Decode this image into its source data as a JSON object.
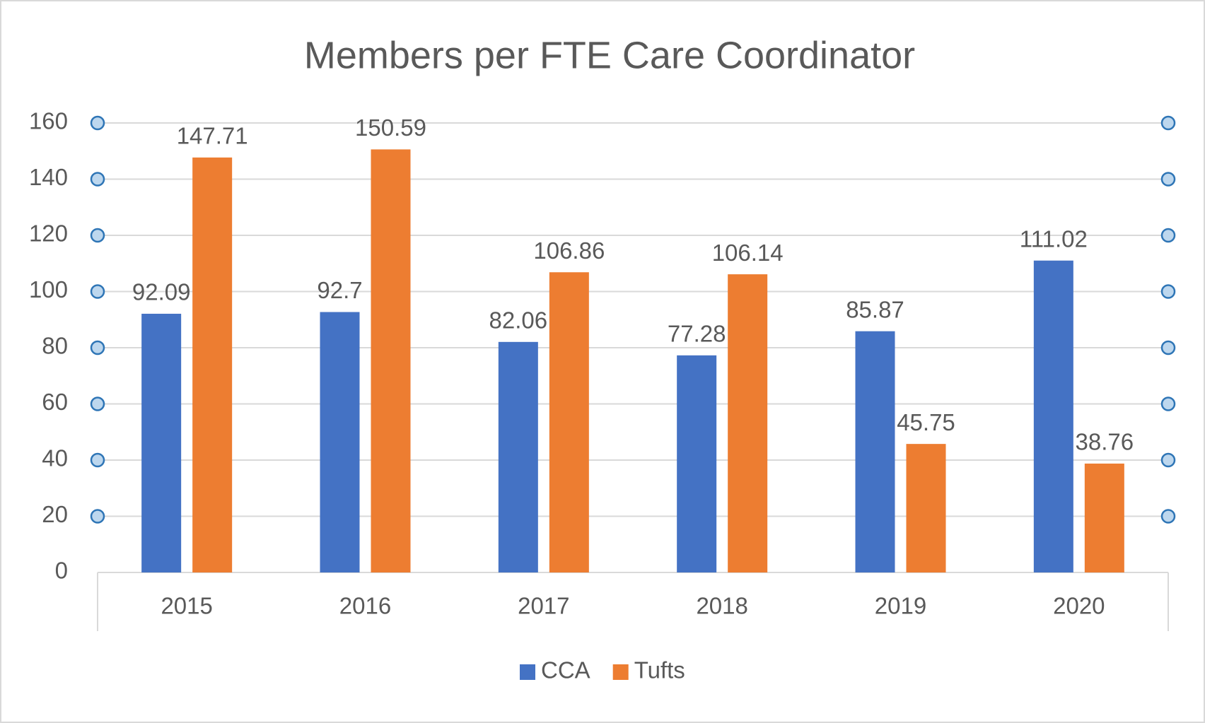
{
  "chart_data": {
    "type": "bar",
    "title": "Members per FTE Care Coordinator",
    "categories": [
      "2015",
      "2016",
      "2017",
      "2018",
      "2019",
      "2020"
    ],
    "series": [
      {
        "name": "CCA",
        "color": "#4472c4",
        "values": [
          92.09,
          92.7,
          82.06,
          77.28,
          85.87,
          111.02
        ]
      },
      {
        "name": "Tufts",
        "color": "#ed7d31",
        "values": [
          147.71,
          150.59,
          106.86,
          106.14,
          45.75,
          38.76
        ]
      }
    ],
    "ylim": [
      0,
      160
    ],
    "yticks": [
      0,
      20,
      40,
      60,
      80,
      100,
      120,
      140,
      160
    ],
    "grid": true,
    "legend": "bottom"
  }
}
